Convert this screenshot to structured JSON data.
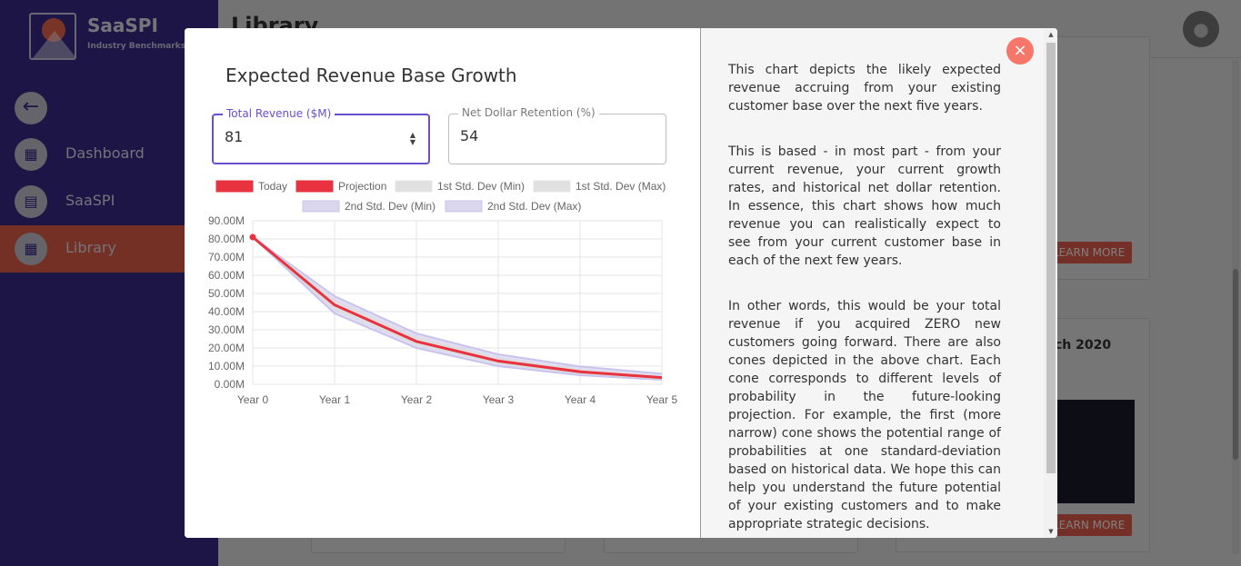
{
  "app": {
    "logo_name": "SaaSPI",
    "logo_sub": "Industry Benchmarks",
    "page_title": "Library",
    "nav": [
      {
        "label": "Dashboard",
        "icon": "dashboard-icon"
      },
      {
        "label": "SaaSPI",
        "icon": "chart-icon"
      },
      {
        "label": "Library",
        "icon": "grid-icon"
      }
    ],
    "bg_learn_more": "LEARN MORE",
    "bg_card_title": "ch 2020"
  },
  "modal": {
    "title": "Expected Revenue Base Growth",
    "fields": {
      "revenue": {
        "label": "Total Revenue ($M)",
        "value": "81"
      },
      "ndr": {
        "label": "Net Dollar Retention (%)",
        "value": "54"
      }
    },
    "description": [
      "This chart depicts the likely expected revenue accruing from your existing customer base over the next five years.",
      "This is based - in most part - from your current revenue, your current growth rates, and historical net dollar retention. In essence, this chart shows how much revenue you can realistically expect to see from your current customer base in each of the next few years.",
      "In other words, this would be your total revenue if you acquired ZERO new customers going forward. There are also cones depicted in the above chart. Each cone corresponds to different levels of probability in the future-looking projection. For example, the first (more narrow) cone shows the potential range of probabilities at one standard-deviation based on historical data. We hope this can help you understand the future potential of your existing customers and to make appropriate strategic decisions."
    ],
    "close_icon": "close-icon"
  },
  "colors": {
    "accent": "#6a4fcf",
    "projection": "#e8323f",
    "sidebar": "#3a2a8c",
    "library_active": "#e8604a"
  },
  "chart_data": {
    "type": "line",
    "x": [
      "Year 0",
      "Year 1",
      "Year 2",
      "Year 3",
      "Year 4",
      "Year 5"
    ],
    "ylim": [
      0,
      90
    ],
    "yticks": [
      "0.00M",
      "10.00M",
      "20.00M",
      "30.00M",
      "40.00M",
      "50.00M",
      "60.00M",
      "70.00M",
      "80.00M",
      "90.00M"
    ],
    "grid": true,
    "legend": [
      {
        "name": "Today",
        "color": "#e8323f"
      },
      {
        "name": "Projection",
        "color": "#e8323f"
      },
      {
        "name": "1st Std. Dev (Min)",
        "color": "#e0e0e0"
      },
      {
        "name": "1st Std. Dev (Max)",
        "color": "#e0e0e0"
      },
      {
        "name": "2nd Std. Dev (Min)",
        "color": "#d9d6ee"
      },
      {
        "name": "2nd Std. Dev (Max)",
        "color": "#d9d6ee"
      }
    ],
    "legend_position": "top",
    "today": [
      81
    ],
    "projection": [
      81,
      43.7,
      23.6,
      12.8,
      6.9,
      3.7
    ],
    "std1_min": [
      81,
      41.5,
      22.0,
      11.5,
      6.0,
      3.1
    ],
    "std1_max": [
      81,
      46.0,
      25.5,
      14.3,
      8.0,
      4.5
    ],
    "std2_min": [
      81,
      39.0,
      20.0,
      10.0,
      5.0,
      2.5
    ],
    "std2_max": [
      81,
      48.5,
      28.0,
      16.5,
      9.8,
      5.8
    ]
  }
}
